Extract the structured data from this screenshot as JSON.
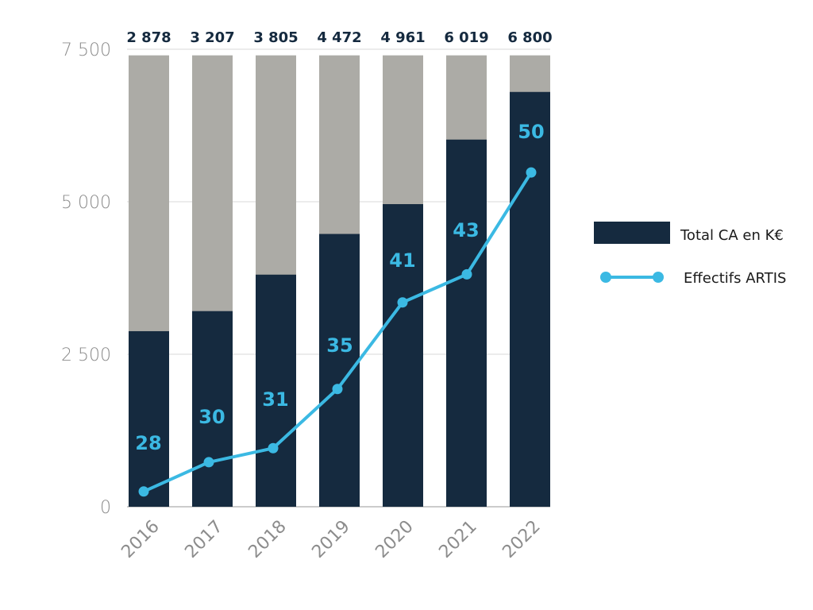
{
  "chart_data": {
    "type": "bar",
    "categories": [
      "2016",
      "2017",
      "2018",
      "2019",
      "2020",
      "2021",
      "2022"
    ],
    "series": [
      {
        "name": "Total CA en K€",
        "type": "bar",
        "values": [
          2878,
          3207,
          3805,
          4472,
          4961,
          6019,
          6800
        ],
        "color": "#152a3f"
      },
      {
        "name": "Effectifs ARTIS",
        "type": "line",
        "values": [
          28,
          30,
          31,
          35,
          41,
          43,
          50
        ],
        "color": "#3bb9e3",
        "point_heights": [
          250,
          730,
          960,
          1930,
          3350,
          3810,
          5480
        ]
      }
    ],
    "bar_data_labels": [
      "2 878",
      "3 207",
      "3 805",
      "4 472",
      "4 961",
      "6 019",
      "6 800"
    ],
    "line_data_labels": [
      "28",
      "30",
      "31",
      "35",
      "41",
      "43",
      "50"
    ],
    "background_color": "#acaba6",
    "ylim": [
      0,
      7500
    ],
    "yticks": [
      {
        "value": 0,
        "label": "0"
      },
      {
        "value": 2500,
        "label": "2 500"
      },
      {
        "value": 5000,
        "label": "5 000"
      },
      {
        "value": 7500,
        "label": "7 500"
      }
    ],
    "title": "",
    "xlabel": "",
    "ylabel": "",
    "grid": true,
    "legend_position": "right",
    "colors": {
      "bar": "#152a3f",
      "line": "#3bb9e3",
      "bar_background": "#acaba6",
      "top_label": "#152a3f",
      "axis_text": "#8c8c8c",
      "grid": "#d9d9d9"
    }
  }
}
